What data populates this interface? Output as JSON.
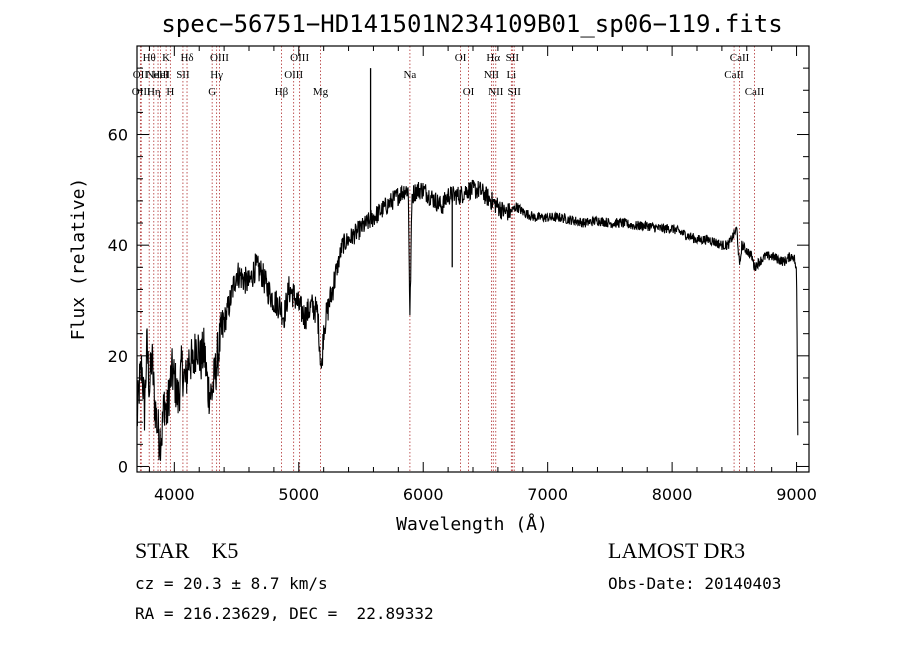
{
  "chart_data": {
    "type": "line",
    "title": "spec−56751−HD141501N234109B01_sp06−119.fits",
    "xlabel": "Wavelength (Å)",
    "ylabel": "Flux (relative)",
    "xlim": [
      3700,
      9100
    ],
    "ylim": [
      -1,
      76
    ],
    "xticks": [
      4000,
      5000,
      6000,
      7000,
      8000,
      9000
    ],
    "yticks": [
      0,
      20,
      40,
      60
    ],
    "series": [
      {
        "name": "flux",
        "x": [
          3700,
          3720,
          3740,
          3760,
          3780,
          3800,
          3820,
          3840,
          3860,
          3880,
          3900,
          3920,
          3940,
          3960,
          3980,
          4000,
          4030,
          4060,
          4090,
          4120,
          4150,
          4180,
          4210,
          4240,
          4270,
          4300,
          4330,
          4360,
          4400,
          4450,
          4500,
          4550,
          4600,
          4650,
          4700,
          4750,
          4800,
          4850,
          4880,
          4920,
          4960,
          5000,
          5050,
          5100,
          5150,
          5183,
          5200,
          5250,
          5300,
          5350,
          5400,
          5450,
          5500,
          5550,
          5600,
          5650,
          5700,
          5750,
          5800,
          5850,
          5880,
          5893,
          5910,
          5950,
          6000,
          6050,
          6100,
          6150,
          6200,
          6250,
          6300,
          6350,
          6400,
          6450,
          6500,
          6550,
          6600,
          6650,
          6700,
          6750,
          6800,
          6900,
          7000,
          7100,
          7200,
          7300,
          7400,
          7500,
          7600,
          7700,
          7800,
          7900,
          8000,
          8100,
          8200,
          8300,
          8400,
          8450,
          8498,
          8520,
          8542,
          8560,
          8600,
          8640,
          8662,
          8700,
          8750,
          8800,
          8850,
          8900,
          8950,
          8980,
          9000,
          9010
        ],
        "y": [
          8,
          15,
          18,
          10,
          22,
          14,
          20,
          12,
          8,
          5,
          6,
          12,
          9,
          14,
          17,
          16,
          12,
          18,
          15,
          20,
          18,
          23,
          19,
          21,
          14,
          13,
          17,
          22,
          26,
          30,
          35,
          34,
          33,
          36,
          35,
          32,
          30,
          29,
          27,
          32,
          31,
          29,
          27,
          29,
          28,
          17,
          25,
          30,
          35,
          40,
          41,
          42,
          43,
          44,
          45,
          46,
          47,
          48,
          49,
          50,
          50,
          27,
          49,
          50,
          50,
          49,
          48,
          47,
          49,
          49,
          49,
          50,
          50,
          50,
          49,
          48,
          47,
          46,
          46,
          47,
          46,
          45,
          45,
          45,
          44.5,
          44,
          44.5,
          44,
          44,
          43.5,
          43.5,
          43,
          43,
          42,
          41,
          41,
          40,
          40,
          42,
          43,
          36,
          40,
          39,
          38,
          36,
          37,
          38,
          38,
          37.5,
          37,
          38,
          38,
          35,
          6
        ]
      }
    ],
    "spikes": [
      {
        "x": 5577,
        "y": 72
      },
      {
        "x": 6233,
        "y": 36
      }
    ],
    "lines": [
      {
        "x": 3727,
        "label": "OII",
        "row": 1
      },
      {
        "x": 3734,
        "label": "OIII",
        "row": 2
      },
      {
        "x": 3798,
        "label": "Hθ",
        "row": 0
      },
      {
        "x": 3835,
        "label": "Hη",
        "row": 2
      },
      {
        "x": 3869,
        "label": "NeIII",
        "row": 1
      },
      {
        "x": 3889,
        "label": "HeI",
        "row": 1
      },
      {
        "x": 3934,
        "label": "K",
        "row": 0
      },
      {
        "x": 3968,
        "label": "H",
        "row": 2
      },
      {
        "x": 4069,
        "label": "SII",
        "row": 1
      },
      {
        "x": 4102,
        "label": "Hδ",
        "row": 0
      },
      {
        "x": 4304,
        "label": "G",
        "row": 2
      },
      {
        "x": 4340,
        "label": "Hγ",
        "row": 1
      },
      {
        "x": 4363,
        "label": "OIII",
        "row": 0
      },
      {
        "x": 4861,
        "label": "Hβ",
        "row": 2
      },
      {
        "x": 4959,
        "label": "OIII",
        "row": 1
      },
      {
        "x": 5007,
        "label": "OIII",
        "row": 0
      },
      {
        "x": 5175,
        "label": "Mg",
        "row": 2
      },
      {
        "x": 5893,
        "label": "Na",
        "row": 1
      },
      {
        "x": 6300,
        "label": "OI",
        "row": 0
      },
      {
        "x": 6364,
        "label": "OI",
        "row": 2
      },
      {
        "x": 6548,
        "label": "NII",
        "row": 1
      },
      {
        "x": 6563,
        "label": "Hα",
        "row": 0
      },
      {
        "x": 6583,
        "label": "NII",
        "row": 2
      },
      {
        "x": 6708,
        "label": "Li",
        "row": 1
      },
      {
        "x": 6716,
        "label": "SII",
        "row": 0
      },
      {
        "x": 6731,
        "label": "SII",
        "row": 2
      },
      {
        "x": 8498,
        "label": "CaII",
        "row": 1
      },
      {
        "x": 8542,
        "label": "CaII",
        "row": 0
      },
      {
        "x": 8662,
        "label": "CaII",
        "row": 2
      }
    ]
  },
  "info": {
    "class_text": "STAR    K5",
    "survey": "LAMOST DR3",
    "cz": "cz = 20.3 ± 8.7 km/s",
    "obs_date": "Obs-Date: 20140403",
    "radec": "RA = 216.23629, DEC =  22.89332"
  }
}
